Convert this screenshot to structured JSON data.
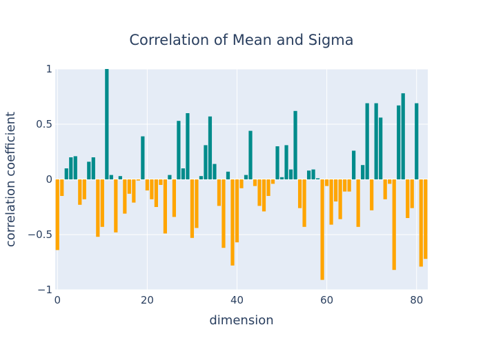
{
  "chart_data": {
    "type": "bar",
    "title": "Correlation of Mean and Sigma",
    "xlabel": "dimension",
    "ylabel": "correlation coefficient",
    "xlim": [
      -0.5,
      82.5
    ],
    "ylim": [
      -1,
      1
    ],
    "x_ticks": [
      0,
      20,
      40,
      60,
      80
    ],
    "x_tick_labels": [
      "0",
      "20",
      "40",
      "60",
      "80"
    ],
    "y_ticks": [
      -1,
      -0.5,
      0,
      0.5,
      1
    ],
    "y_tick_labels": [
      "−1",
      "−0.5",
      "0",
      "0.5",
      "1"
    ],
    "grid": true,
    "positive_color": "#008b8b",
    "negative_color": "#ffa500",
    "plot_background": "#e5ecf6",
    "x": [
      0,
      1,
      2,
      3,
      4,
      5,
      6,
      7,
      8,
      9,
      10,
      11,
      12,
      13,
      14,
      15,
      16,
      17,
      18,
      19,
      20,
      21,
      22,
      23,
      24,
      25,
      26,
      27,
      28,
      29,
      30,
      31,
      32,
      33,
      34,
      35,
      36,
      37,
      38,
      39,
      40,
      41,
      42,
      43,
      44,
      45,
      46,
      47,
      48,
      49,
      50,
      51,
      52,
      53,
      54,
      55,
      56,
      57,
      58,
      59,
      60,
      61,
      62,
      63,
      64,
      65,
      66,
      67,
      68,
      69,
      70,
      71,
      72,
      73,
      74,
      75,
      76,
      77,
      78,
      79,
      80,
      81,
      82
    ],
    "values": [
      -0.64,
      -0.15,
      0.1,
      0.2,
      0.21,
      -0.23,
      -0.18,
      0.16,
      0.2,
      -0.52,
      -0.43,
      1.0,
      0.04,
      -0.48,
      0.03,
      -0.31,
      -0.13,
      -0.21,
      -0.01,
      0.39,
      -0.1,
      -0.18,
      -0.25,
      -0.05,
      -0.49,
      0.04,
      -0.34,
      0.53,
      0.1,
      0.6,
      -0.53,
      -0.44,
      0.03,
      0.31,
      0.57,
      0.14,
      -0.24,
      -0.62,
      0.07,
      -0.78,
      -0.57,
      -0.08,
      0.04,
      0.44,
      -0.06,
      -0.24,
      -0.29,
      -0.15,
      -0.04,
      0.3,
      0.02,
      0.31,
      0.09,
      0.62,
      -0.26,
      -0.43,
      0.08,
      0.09,
      0.01,
      -0.91,
      -0.06,
      -0.41,
      -0.2,
      -0.36,
      -0.11,
      -0.11,
      0.26,
      -0.43,
      0.13,
      0.69,
      -0.28,
      0.69,
      0.56,
      -0.18,
      -0.04,
      -0.82,
      0.67,
      0.78,
      -0.35,
      -0.26,
      0.69,
      -0.79,
      -0.72
    ]
  }
}
